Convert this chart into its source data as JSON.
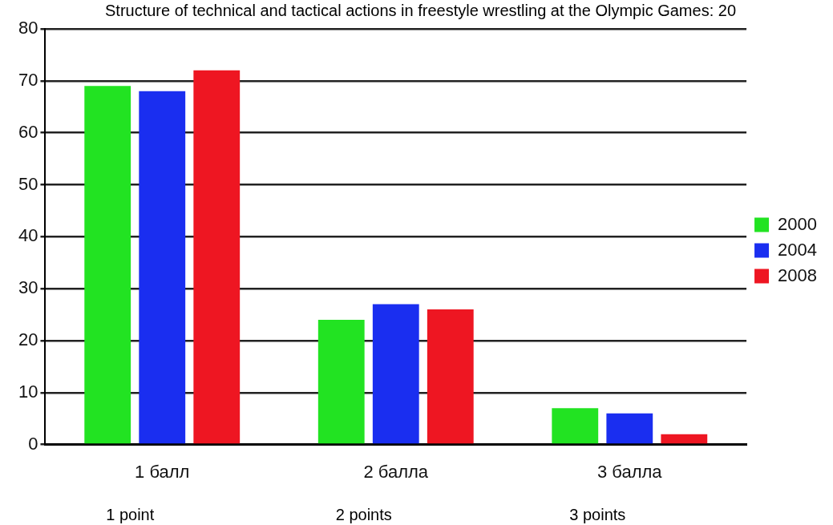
{
  "chart_data": {
    "type": "bar",
    "title": "Structure of technical and tactical actions in freestyle wrestling at the Olympic Games: 20",
    "categories": [
      "1 балл",
      "2 балла",
      "3 балла"
    ],
    "series": [
      {
        "name": "2000",
        "color": "#22e322",
        "values": [
          69,
          24,
          7
        ]
      },
      {
        "name": "2004",
        "color": "#1a2ef0",
        "values": [
          68,
          27,
          6
        ]
      },
      {
        "name": "2008",
        "color": "#ee1622",
        "values": [
          72,
          26,
          2
        ]
      }
    ],
    "ylim": [
      0,
      80
    ],
    "yticks": [
      0,
      10,
      20,
      30,
      40,
      50,
      60,
      70,
      80
    ],
    "grid": "y",
    "legend": "right",
    "annotations": [
      "1 point",
      "2 points",
      "3 points"
    ]
  }
}
